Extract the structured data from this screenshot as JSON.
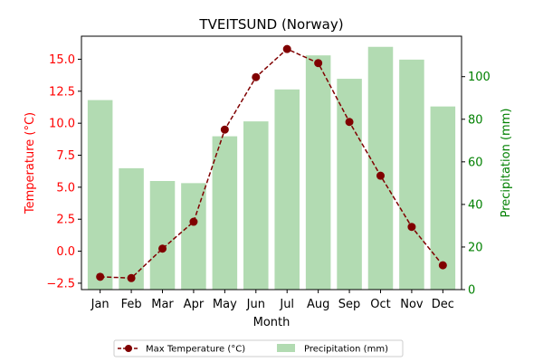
{
  "chart_data": {
    "type": "bar+line",
    "title": "TVEITSUND (Norway)",
    "xlabel": "Month",
    "ylabel_left": "Temperature (°C)",
    "ylabel_right": "Precipitation (mm)",
    "categories": [
      "Jan",
      "Feb",
      "Mar",
      "Apr",
      "May",
      "Jun",
      "Jul",
      "Aug",
      "Sep",
      "Oct",
      "Nov",
      "Dec"
    ],
    "y_left_ticks": [
      "−2.5",
      "0.0",
      "2.5",
      "5.0",
      "7.5",
      "10.0",
      "12.5",
      "15.0"
    ],
    "y_left_tick_values": [
      -2.5,
      0,
      2.5,
      5,
      7.5,
      10,
      12.5,
      15
    ],
    "y_left_lim": [
      -3.0,
      16.8
    ],
    "y_right_ticks": [
      "0",
      "20",
      "40",
      "60",
      "80",
      "100"
    ],
    "y_right_tick_values": [
      0,
      20,
      40,
      60,
      80,
      100
    ],
    "y_right_lim": [
      0,
      119
    ],
    "series": [
      {
        "name": "Max Temperature (°C)",
        "type": "line",
        "axis": "left",
        "values": [
          -2.0,
          -2.1,
          0.2,
          2.3,
          9.5,
          13.6,
          15.8,
          14.7,
          10.1,
          5.9,
          1.9,
          -1.1
        ]
      },
      {
        "name": "Precipitation (mm)",
        "type": "bar",
        "axis": "right",
        "values": [
          89,
          57,
          51,
          50,
          72,
          79,
          94,
          110,
          99,
          114,
          108,
          86
        ]
      }
    ],
    "grid": false,
    "legend_position": "bottom-center",
    "colors": {
      "line": "#800000",
      "bar": "#b2dbb2",
      "left_axis": "#ff0000",
      "right_axis": "#008000"
    }
  }
}
